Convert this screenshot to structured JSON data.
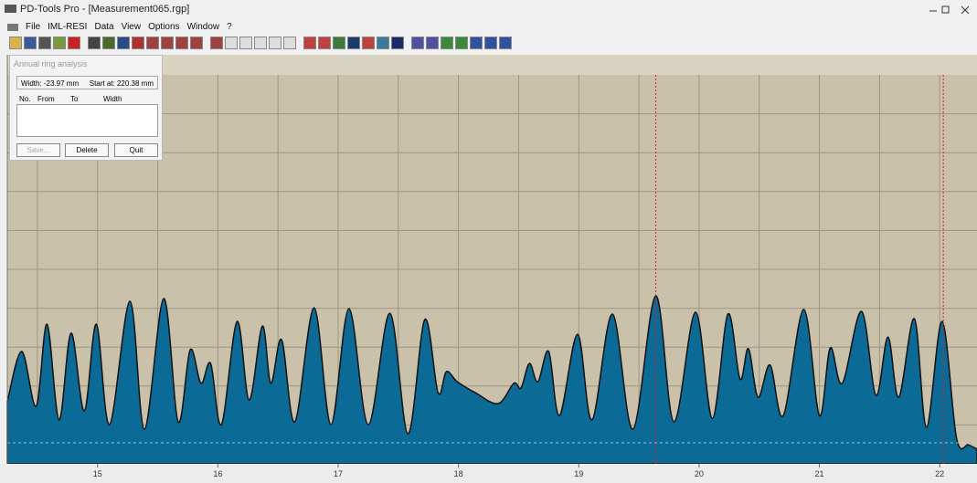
{
  "window": {
    "title": "PD-Tools Pro - [Measurement065.rgp]",
    "menu": [
      "File",
      "IML-RESI",
      "Data",
      "View",
      "Options",
      "Window",
      "?"
    ]
  },
  "dialog": {
    "title": "Annual ring analysis",
    "width": "Width: -23.97 mm",
    "start": "Start at: 220.38 mm",
    "columns": [
      "No.",
      "From",
      "To",
      "Width"
    ],
    "buttons": [
      "Save...",
      "Delete",
      "Quit"
    ]
  },
  "chart_data": {
    "type": "area",
    "x": [
      14.25,
      14.37,
      14.49,
      14.58,
      14.68,
      14.78,
      14.89,
      14.99,
      15.1,
      15.27,
      15.39,
      15.55,
      15.67,
      15.77,
      15.86,
      15.94,
      16.03,
      16.16,
      16.26,
      16.37,
      16.44,
      16.53,
      16.64,
      16.8,
      16.94,
      17.09,
      17.25,
      17.43,
      17.58,
      17.72,
      17.83,
      17.9,
      17.99,
      18.14,
      18.33,
      18.46,
      18.52,
      18.59,
      18.66,
      18.75,
      18.84,
      18.99,
      19.11,
      19.28,
      19.45,
      19.64,
      19.79,
      19.97,
      20.11,
      20.24,
      20.34,
      20.41,
      20.49,
      20.59,
      20.7,
      20.87,
      21.0,
      21.09,
      21.19,
      21.35,
      21.47,
      21.57,
      21.66,
      21.79,
      21.89,
      22.02,
      22.14,
      22.24,
      22.31
    ],
    "values": [
      16.0,
      28.9,
      14.8,
      35.9,
      11.3,
      33.6,
      13.6,
      35.9,
      10.1,
      41.8,
      8.9,
      42.5,
      10.8,
      29.3,
      20.7,
      25.8,
      10.1,
      36.6,
      16.4,
      35.4,
      20.7,
      31.9,
      10.8,
      40.1,
      10.1,
      39.9,
      10.1,
      38.7,
      7.7,
      37.1,
      18.3,
      23.7,
      21.1,
      18.3,
      15.5,
      20.7,
      19.5,
      25.8,
      21.1,
      28.9,
      12.4,
      33.3,
      11.3,
      38.5,
      8.9,
      43.2,
      10.8,
      39.0,
      11.7,
      38.5,
      21.8,
      29.6,
      17.1,
      25.4,
      12.4,
      39.7,
      12.4,
      29.8,
      20.7,
      39.2,
      17.6,
      32.6,
      17.1,
      37.3,
      9.4,
      36.6,
      6.6,
      4.9,
      3.8
    ],
    "color": "#0b6a96",
    "xlim": [
      14.25,
      22.31
    ],
    "ylim": [
      0,
      100
    ],
    "xticks": [
      15,
      16,
      17,
      18,
      19,
      20,
      21,
      22
    ],
    "markers": [
      19.64,
      22.03
    ],
    "baseline": 5.4
  }
}
